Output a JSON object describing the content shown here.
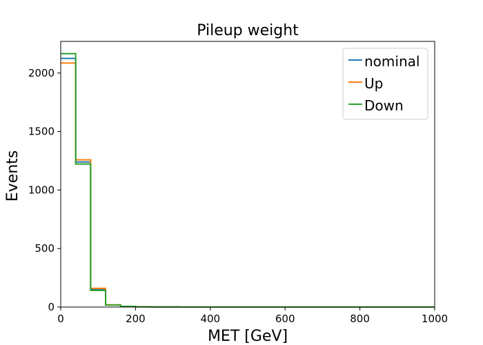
{
  "chart_data": {
    "type": "line",
    "drawstyle": "steps-post",
    "title": "Pileup weight",
    "xlabel": "MET [GeV]",
    "ylabel": "Events",
    "xlim": [
      0,
      1000
    ],
    "ylim": [
      0,
      2270
    ],
    "xticks": [
      0,
      200,
      400,
      600,
      800,
      1000
    ],
    "yticks": [
      0,
      500,
      1000,
      1500,
      2000
    ],
    "grid": false,
    "legend_position": "top-right",
    "bin_edges": [
      0,
      40,
      80,
      120,
      160,
      200,
      240,
      280,
      320,
      360,
      400,
      440,
      480,
      520,
      560,
      600,
      640,
      680,
      720,
      760,
      800,
      840,
      880,
      920,
      960,
      1000
    ],
    "series": [
      {
        "name": "nominal",
        "color": "#1f77b4",
        "values": [
          2125,
          1240,
          150,
          18,
          6,
          2,
          1,
          1,
          0,
          0,
          0,
          0,
          0,
          0,
          0,
          0,
          0,
          0,
          0,
          0,
          0,
          0,
          0,
          0,
          0
        ]
      },
      {
        "name": "Up",
        "color": "#ff7f0e",
        "values": [
          2085,
          1258,
          160,
          19,
          6,
          2,
          1,
          1,
          0,
          0,
          0,
          0,
          0,
          0,
          0,
          0,
          0,
          0,
          0,
          0,
          0,
          0,
          0,
          0,
          0
        ]
      },
      {
        "name": "Down",
        "color": "#2ca02c",
        "values": [
          2165,
          1222,
          142,
          17,
          6,
          2,
          1,
          1,
          0,
          0,
          0,
          0,
          0,
          0,
          0,
          0,
          0,
          0,
          0,
          0,
          0,
          0,
          0,
          0,
          0
        ]
      }
    ]
  }
}
